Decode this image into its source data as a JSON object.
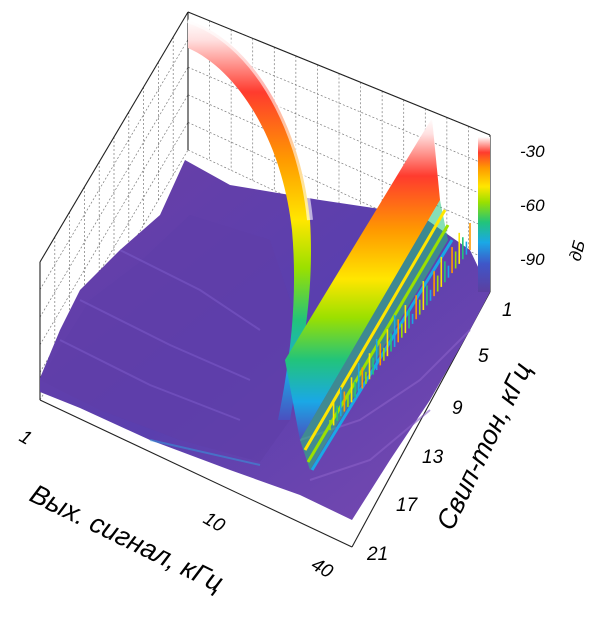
{
  "chart_data": {
    "type": "3d-surface",
    "title": "",
    "xlabel": "Вых. сигнал, кГц",
    "ylabel": "Свип-тон, кГц",
    "zlabel": "дБ",
    "x_scale": "log",
    "x_ticks": [
      "1",
      "10",
      "40"
    ],
    "y_ticks": [
      "1",
      "5",
      "9",
      "13",
      "17",
      "21"
    ],
    "z_ticks": [
      "-30",
      "-60",
      "-90"
    ],
    "x_range": [
      1,
      40
    ],
    "y_range": [
      1,
      21
    ],
    "z_range": [
      -110,
      -20
    ],
    "colorscale": [
      "#6a3d9a",
      "#4a50c0",
      "#1aa8e6",
      "#22c47a",
      "#9be000",
      "#ffe600",
      "#ff9a00",
      "#ff3b2e",
      "#ffffff"
    ],
    "grid": true,
    "ridges": [
      {
        "name_hidden": "",
        "kind": "fundamental",
        "description_hidden": "",
        "points": [
          [
            1,
            1
          ],
          [
            2,
            2
          ],
          [
            5,
            5
          ],
          [
            10,
            10
          ],
          [
            15,
            15
          ],
          [
            21,
            21
          ]
        ],
        "peak_db": -20
      },
      {
        "kind": "second-harmonic",
        "points": [
          [
            2,
            1
          ],
          [
            10,
            5
          ],
          [
            20,
            10
          ],
          [
            40,
            20
          ]
        ],
        "peak_db": -35
      }
    ],
    "floor_db": -100
  },
  "labels": {
    "x_title": "Вых. сигнал, кГц",
    "y_title": "Свип-тон, кГц",
    "z_title": "дБ"
  }
}
